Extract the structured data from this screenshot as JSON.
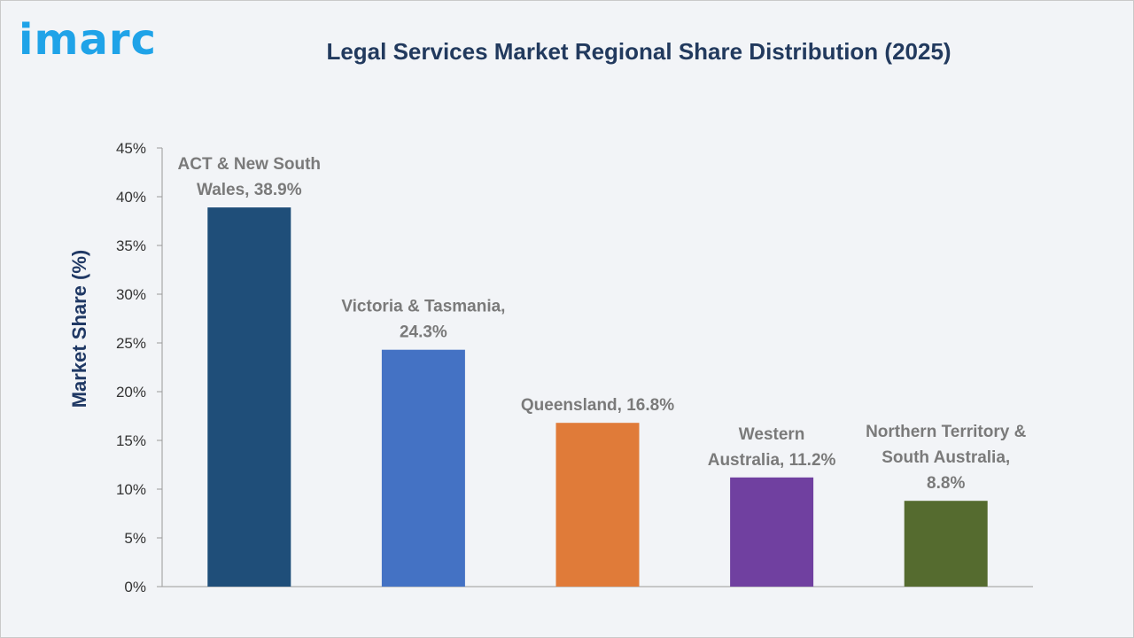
{
  "brand": {
    "logo_text": "imarc",
    "logo_color": "#1fa3e8"
  },
  "chart_data": {
    "type": "bar",
    "title": "Legal Services Market Regional Share Distribution (2025)",
    "ylabel": "Market Share (%)",
    "xlabel": "",
    "ylim": [
      0,
      45
    ],
    "yticks": [
      0,
      5,
      10,
      15,
      20,
      25,
      30,
      35,
      40,
      45
    ],
    "ytick_labels": [
      "0%",
      "5%",
      "10%",
      "15%",
      "20%",
      "25%",
      "30%",
      "35%",
      "40%",
      "45%"
    ],
    "grid": false,
    "legend": "none",
    "categories": [
      "ACT & New South Wales",
      "Victoria & Tasmania",
      "Queensland",
      "Western Australia",
      "Northern Territory & South Australia"
    ],
    "values": [
      38.9,
      24.3,
      16.8,
      11.2,
      8.8
    ],
    "colors": [
      "#1f4e79",
      "#4472c4",
      "#e07b39",
      "#7040a0",
      "#556b2f"
    ],
    "data_labels": [
      [
        "ACT & New South",
        "Wales, 38.9%"
      ],
      [
        "Victoria & Tasmania,",
        "24.3%"
      ],
      [
        "Queensland, 16.8%"
      ],
      [
        "Western",
        "Australia, 11.2%"
      ],
      [
        "Northern Territory &",
        "South Australia,",
        "8.8%"
      ]
    ]
  }
}
